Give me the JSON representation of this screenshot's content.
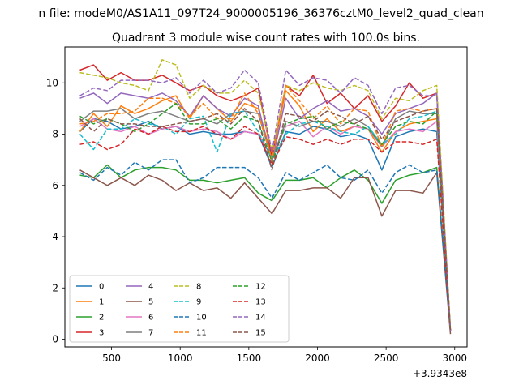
{
  "chart_data": {
    "type": "line",
    "suptitle": "n file: modeM0/AS1A11_097T24_9000005196_36376cztM0_level2_quad_clean",
    "title": "Quadrant 3 module wise count rates with 100.0s bins.",
    "xlabel": "",
    "ylabel": "",
    "offset_label": "+3.9343e8",
    "xlim": [
      160,
      3090
    ],
    "ylim": [
      -0.3,
      11.4
    ],
    "xticks": [
      500,
      1000,
      1500,
      2000,
      2500,
      3000
    ],
    "yticks": [
      0,
      2,
      4,
      6,
      8,
      10
    ],
    "grid": false,
    "legend_position": "lower-left",
    "x": [
      269,
      369,
      469,
      569,
      669,
      769,
      869,
      969,
      1069,
      1169,
      1269,
      1369,
      1469,
      1569,
      1669,
      1769,
      1869,
      1969,
      2069,
      2169,
      2269,
      2369,
      2469,
      2569,
      2669,
      2769,
      2869,
      2969
    ],
    "series": [
      {
        "name": "0",
        "color": "#1f77b4",
        "dash": "solid",
        "values": [
          8.1,
          8.6,
          8.5,
          8.2,
          8.3,
          8.5,
          8.2,
          8.3,
          8.0,
          8.1,
          8.0,
          8.0,
          8.1,
          8.0,
          6.7,
          8.1,
          8.0,
          8.3,
          8.2,
          7.9,
          8.0,
          7.8,
          6.6,
          7.9,
          8.1,
          8.2,
          8.1,
          0.3
        ]
      },
      {
        "name": "1",
        "color": "#ff7f0e",
        "dash": "solid",
        "values": [
          8.1,
          8.8,
          8.3,
          9.1,
          8.8,
          9.0,
          9.3,
          9.5,
          8.6,
          9.5,
          9.0,
          8.5,
          9.2,
          9.0,
          7.1,
          9.7,
          9.1,
          8.1,
          8.6,
          8.1,
          8.3,
          8.2,
          7.3,
          8.1,
          8.4,
          8.5,
          8.6,
          0.3
        ]
      },
      {
        "name": "2",
        "color": "#2ca02c",
        "dash": "solid",
        "values": [
          6.4,
          6.3,
          6.8,
          6.3,
          6.6,
          6.7,
          6.7,
          6.6,
          6.2,
          6.2,
          6.1,
          6.2,
          6.3,
          5.7,
          5.4,
          6.2,
          6.2,
          6.3,
          5.9,
          6.3,
          6.6,
          6.2,
          5.3,
          6.2,
          6.4,
          6.5,
          6.7,
          0.3
        ]
      },
      {
        "name": "3",
        "color": "#d62728",
        "dash": "solid",
        "values": [
          10.5,
          10.7,
          10.1,
          10.4,
          10.1,
          10.1,
          10.3,
          10.0,
          9.7,
          9.9,
          9.5,
          9.3,
          9.5,
          9.8,
          7.1,
          9.9,
          9.5,
          10.3,
          9.2,
          9.6,
          9.0,
          9.5,
          8.5,
          9.1,
          10.0,
          9.4,
          9.6,
          0.3
        ]
      },
      {
        "name": "4",
        "color": "#9467bd",
        "dash": "solid",
        "values": [
          9.4,
          9.6,
          9.2,
          9.6,
          9.5,
          9.4,
          9.6,
          9.3,
          8.7,
          9.5,
          9.0,
          8.7,
          9.4,
          9.1,
          6.9,
          9.4,
          8.6,
          9.0,
          9.3,
          8.9,
          9.0,
          8.7,
          8.0,
          8.8,
          9.0,
          9.2,
          9.6,
          0.3
        ]
      },
      {
        "name": "5",
        "color": "#8c564b",
        "dash": "solid",
        "values": [
          6.6,
          6.3,
          6.0,
          6.3,
          6.0,
          6.4,
          6.2,
          5.8,
          6.1,
          5.8,
          5.9,
          5.5,
          6.1,
          5.5,
          4.9,
          5.8,
          5.8,
          5.9,
          5.9,
          5.5,
          6.3,
          6.3,
          4.8,
          5.8,
          5.8,
          5.7,
          6.5,
          0.2
        ]
      },
      {
        "name": "6",
        "color": "#e377c2",
        "dash": "solid",
        "values": [
          8.3,
          8.6,
          8.2,
          8.1,
          8.3,
          8.0,
          8.2,
          8.3,
          8.1,
          8.2,
          8.1,
          7.8,
          8.1,
          8.0,
          7.1,
          8.3,
          8.5,
          7.9,
          8.3,
          8.0,
          8.3,
          8.2,
          7.5,
          8.1,
          8.2,
          8.1,
          8.5,
          0.3
        ]
      },
      {
        "name": "7",
        "color": "#7f7f7f",
        "dash": "solid",
        "values": [
          8.5,
          8.9,
          8.9,
          9.0,
          8.6,
          8.8,
          8.9,
          8.7,
          8.5,
          8.6,
          8.4,
          8.8,
          8.9,
          8.8,
          7.0,
          8.5,
          8.3,
          8.5,
          8.5,
          8.3,
          8.6,
          8.3,
          7.5,
          8.6,
          8.9,
          8.8,
          8.8,
          0.3
        ]
      },
      {
        "name": "8",
        "color": "#bcbd22",
        "dash": "dashed",
        "values": [
          10.4,
          10.3,
          10.2,
          10.0,
          9.9,
          9.7,
          10.9,
          10.7,
          9.4,
          9.9,
          9.6,
          9.6,
          10.1,
          9.6,
          7.3,
          9.9,
          9.7,
          10.0,
          9.8,
          9.7,
          9.9,
          9.7,
          8.6,
          9.4,
          9.3,
          9.7,
          9.9,
          0.4
        ]
      },
      {
        "name": "9",
        "color": "#17becf",
        "dash": "dashed",
        "values": [
          8.0,
          7.4,
          8.2,
          8.2,
          8.6,
          8.4,
          8.3,
          8.0,
          8.6,
          8.7,
          7.3,
          8.8,
          8.9,
          8.1,
          7.0,
          8.0,
          8.4,
          8.5,
          8.3,
          8.1,
          8.0,
          8.3,
          7.6,
          8.0,
          8.6,
          8.7,
          8.9,
          0.3
        ]
      },
      {
        "name": "10",
        "color": "#1f77b4",
        "dash": "dashed",
        "values": [
          6.5,
          6.2,
          6.7,
          6.4,
          6.9,
          6.6,
          7.0,
          7.0,
          6.1,
          6.3,
          6.7,
          6.7,
          6.7,
          6.3,
          5.5,
          6.5,
          6.2,
          6.5,
          6.8,
          6.3,
          6.2,
          6.6,
          5.7,
          6.5,
          6.8,
          6.5,
          6.6,
          0.3
        ]
      },
      {
        "name": "11",
        "color": "#ff7f0e",
        "dash": "dashed",
        "values": [
          8.4,
          8.5,
          8.8,
          8.8,
          8.9,
          9.4,
          9.4,
          9.2,
          8.7,
          9.2,
          8.6,
          8.6,
          9.6,
          8.8,
          7.0,
          9.9,
          9.3,
          8.6,
          9.1,
          8.4,
          9.0,
          8.9,
          7.5,
          8.9,
          9.0,
          8.9,
          9.0,
          0.3
        ]
      },
      {
        "name": "12",
        "color": "#2ca02c",
        "dash": "dashed",
        "values": [
          8.7,
          8.4,
          8.6,
          8.4,
          8.1,
          8.4,
          8.8,
          9.2,
          8.4,
          8.4,
          8.6,
          8.2,
          8.7,
          8.5,
          6.9,
          8.4,
          8.6,
          8.7,
          8.2,
          8.5,
          8.4,
          8.2,
          7.6,
          8.3,
          8.5,
          8.4,
          8.9,
          0.3
        ]
      },
      {
        "name": "13",
        "color": "#d62728",
        "dash": "dashed",
        "values": [
          7.6,
          7.7,
          7.4,
          7.6,
          8.2,
          8.0,
          8.3,
          8.1,
          8.1,
          8.3,
          8.0,
          7.8,
          8.3,
          8.0,
          6.8,
          7.9,
          7.8,
          7.6,
          7.8,
          7.6,
          7.8,
          7.8,
          7.3,
          7.7,
          7.7,
          7.6,
          7.8,
          0.3
        ]
      },
      {
        "name": "14",
        "color": "#9467bd",
        "dash": "dashed",
        "values": [
          9.5,
          9.8,
          9.7,
          10.1,
          10.1,
          10.1,
          10.0,
          10.2,
          9.6,
          10.1,
          9.6,
          9.8,
          10.5,
          10.0,
          7.3,
          10.5,
          9.9,
          10.2,
          10.1,
          9.6,
          10.2,
          9.9,
          8.8,
          9.8,
          9.9,
          9.5,
          9.5,
          0.3
        ]
      },
      {
        "name": "15",
        "color": "#8c564b",
        "dash": "dashed",
        "values": [
          8.6,
          8.1,
          8.6,
          8.4,
          8.4,
          8.3,
          8.3,
          8.4,
          8.5,
          8.6,
          8.8,
          8.4,
          9.0,
          8.5,
          6.6,
          8.8,
          8.7,
          8.5,
          8.9,
          8.7,
          8.4,
          8.7,
          7.8,
          8.5,
          8.7,
          8.9,
          9.0,
          0.3
        ]
      }
    ]
  }
}
